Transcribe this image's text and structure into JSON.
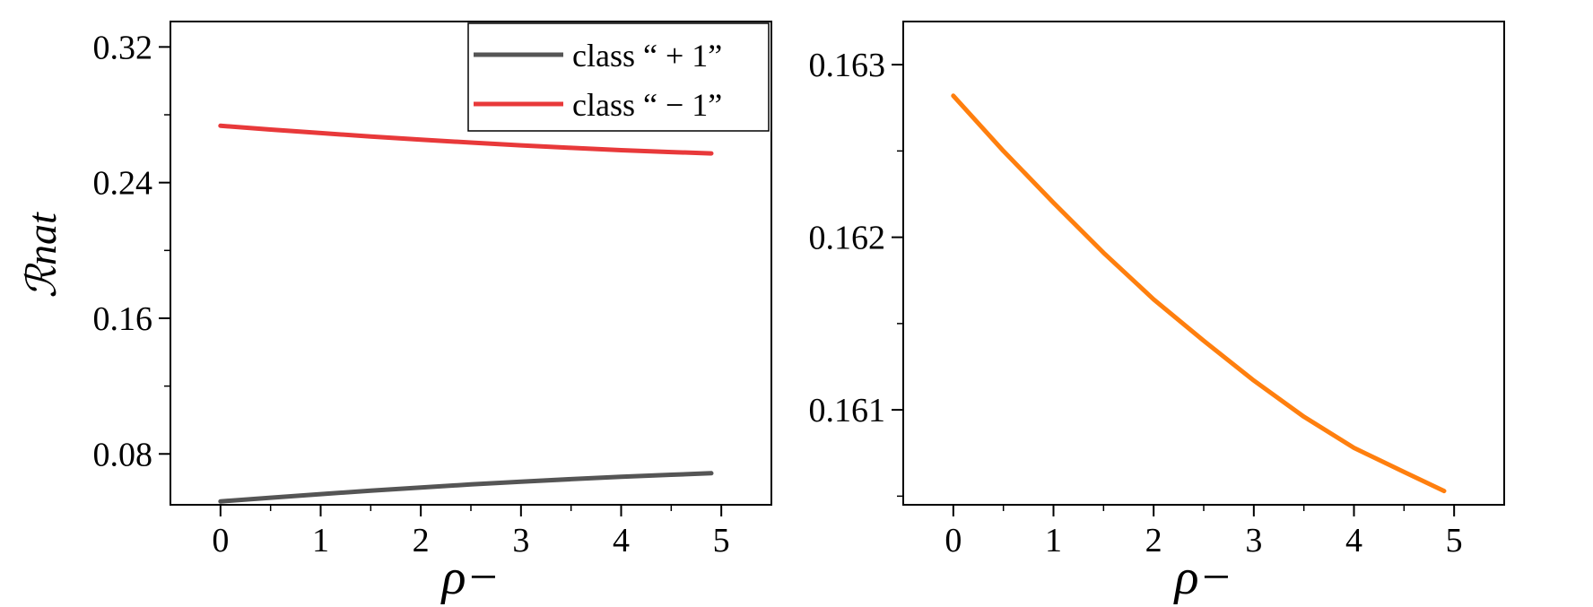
{
  "chart_data": [
    {
      "type": "line",
      "xlabel": "ρ−",
      "ylabel": "ℛnat",
      "xlim": [
        -0.5,
        5.5
      ],
      "ylim": [
        0.05,
        0.335
      ],
      "xticks": [
        0,
        1,
        2,
        3,
        4,
        5
      ],
      "xtick_labels": [
        "0",
        "1",
        "2",
        "3",
        "4",
        "5"
      ],
      "yticks": [
        0.08,
        0.16,
        0.24,
        0.32
      ],
      "ytick_labels": [
        "0.08",
        "0.16",
        "0.24",
        "0.32"
      ],
      "grid": false,
      "legend": "top-right",
      "series": [
        {
          "name": "class “ + 1”",
          "color": "#555555",
          "x": [
            0,
            0.5,
            1,
            1.5,
            2,
            2.5,
            3,
            3.5,
            4,
            4.5,
            4.9
          ],
          "y": [
            0.052,
            0.0542,
            0.0563,
            0.0583,
            0.0602,
            0.062,
            0.0636,
            0.0651,
            0.0665,
            0.0677,
            0.0686
          ]
        },
        {
          "name": "class “ − 1”",
          "color": "#e8393a",
          "x": [
            0,
            0.5,
            1,
            1.5,
            2,
            2.5,
            3,
            3.5,
            4,
            4.5,
            4.9
          ],
          "y": [
            0.2735,
            0.2713,
            0.2692,
            0.2672,
            0.2653,
            0.2636,
            0.262,
            0.2605,
            0.2591,
            0.258,
            0.2572
          ]
        }
      ]
    },
    {
      "type": "line",
      "xlabel": "ρ−",
      "ylabel": "",
      "xlim": [
        -0.5,
        5.5
      ],
      "ylim": [
        160.45,
        163.25
      ],
      "xticks": [
        0,
        1,
        2,
        3,
        4,
        5
      ],
      "xtick_labels": [
        "0",
        "1",
        "2",
        "3",
        "4",
        "5"
      ],
      "yticks": [
        161,
        162,
        163
      ],
      "ytick_labels": [
        "0.161",
        "0.162",
        "0.163"
      ],
      "grid": false,
      "series": [
        {
          "color": "#ff7f0e",
          "x": [
            0,
            0.5,
            1,
            1.5,
            2,
            2.5,
            3,
            3.5,
            4,
            4.5,
            4.9
          ],
          "y": [
            162.82,
            162.5,
            162.2,
            161.91,
            161.64,
            161.4,
            161.17,
            160.96,
            160.78,
            160.64,
            160.53
          ]
        }
      ]
    }
  ]
}
